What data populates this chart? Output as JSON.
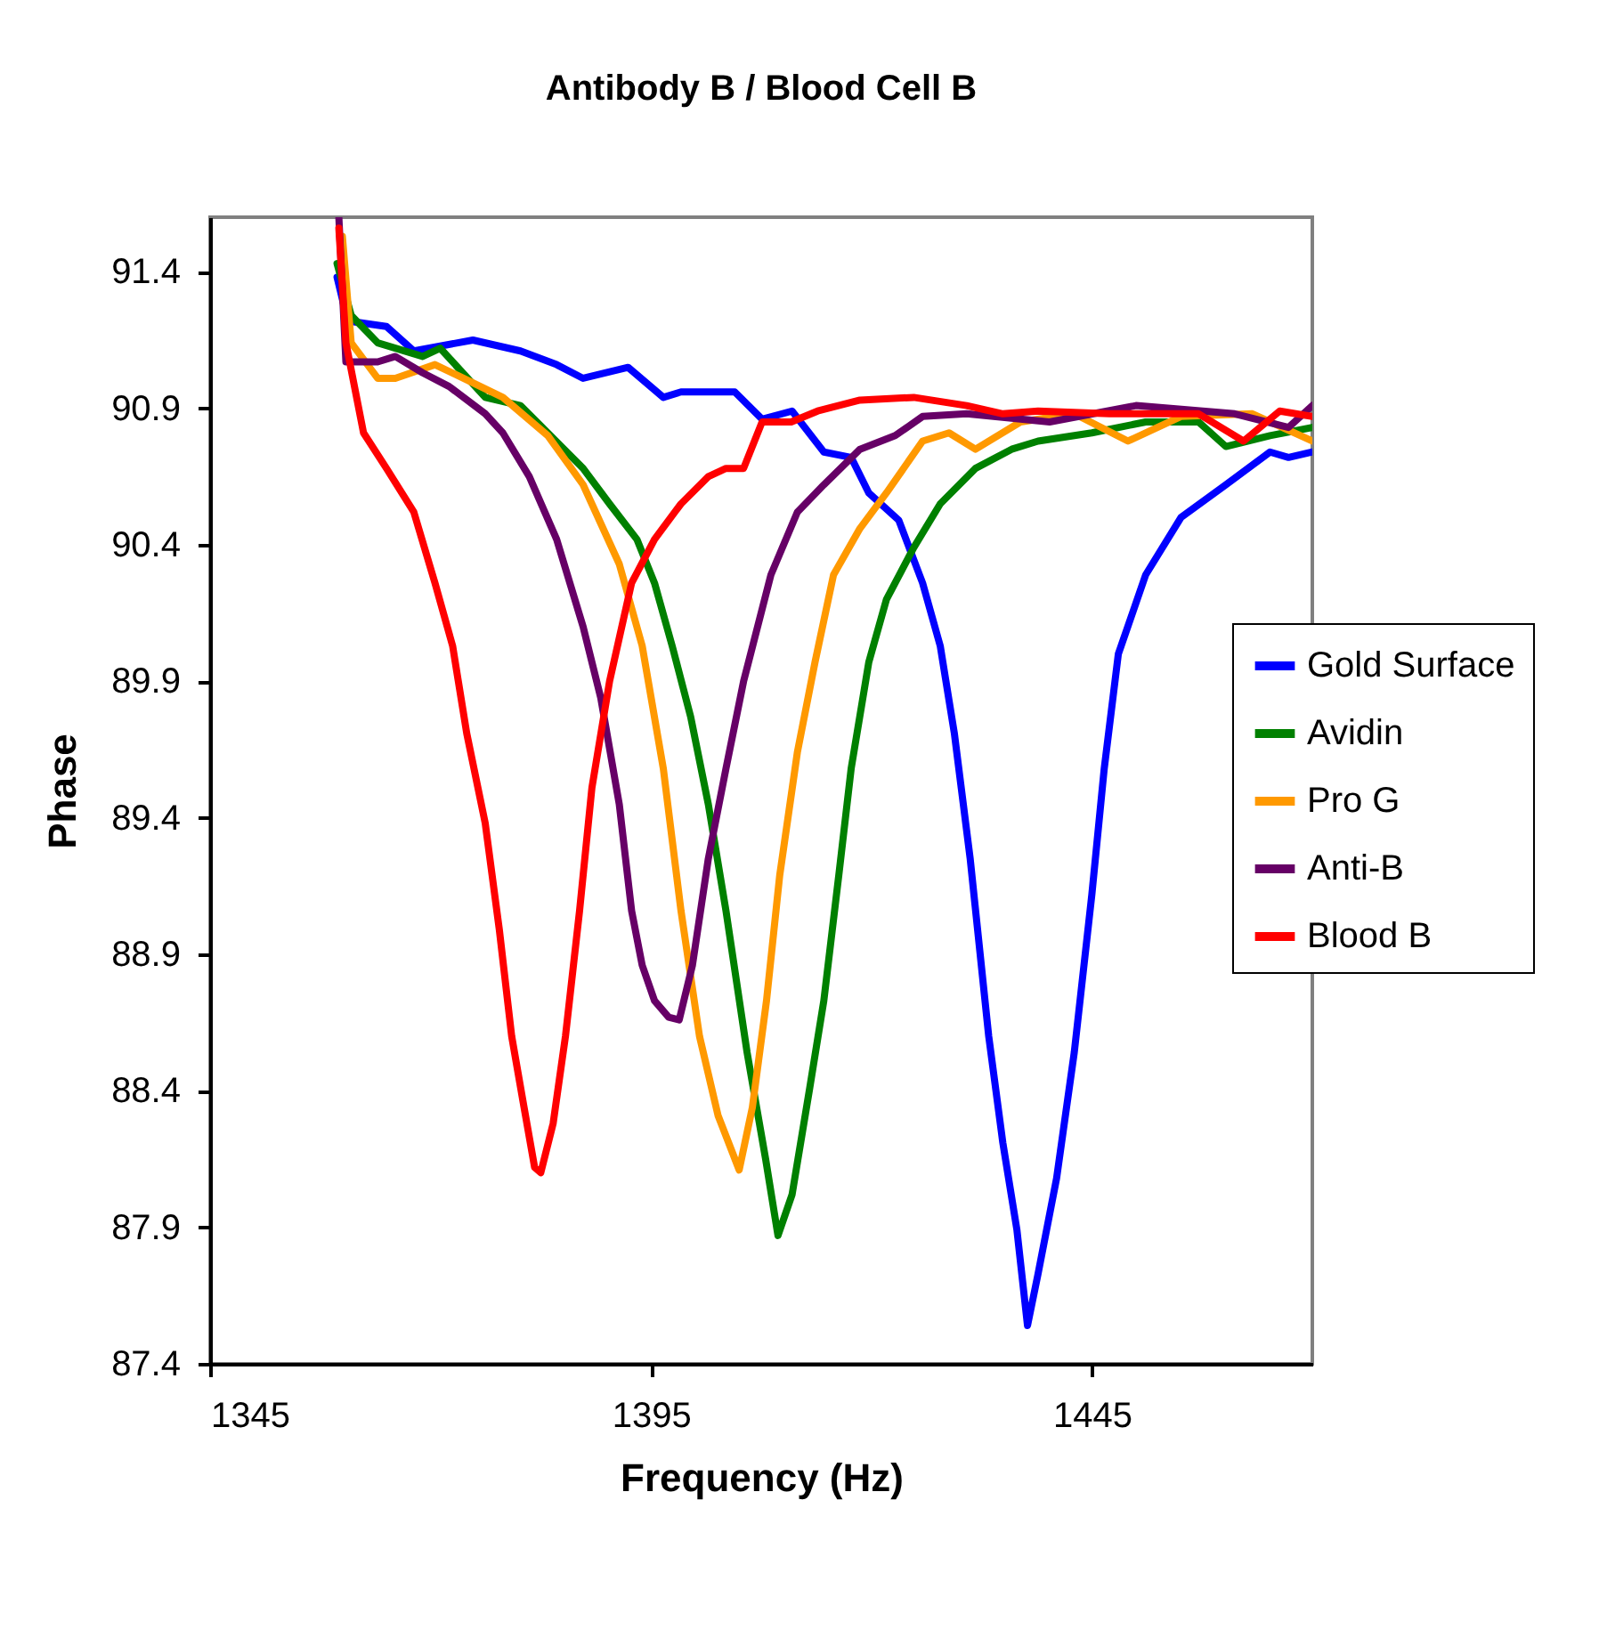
{
  "chart_data": {
    "type": "line",
    "title": "Antibody B / Blood Cell B",
    "xlabel": "Frequency (Hz)",
    "ylabel": "Phase",
    "xlim": [
      1345,
      1470
    ],
    "xticks": [
      1345,
      1395,
      1445
    ],
    "ylim": [
      87.4,
      91.6
    ],
    "yticks": [
      87.4,
      87.9,
      88.4,
      88.9,
      89.4,
      89.9,
      90.4,
      90.9,
      91.4
    ],
    "grid": false,
    "legend": "right",
    "marker": "none",
    "line_style": "solid",
    "series": [
      {
        "name": "Gold Surface",
        "color": "#0000ff",
        "x": [
          1359.4,
          1360.6,
          1365.0,
          1368.1,
          1374.8,
          1380.2,
          1384.3,
          1387.3,
          1392.4,
          1396.4,
          1398.4,
          1404.5,
          1407.6,
          1411.0,
          1414.6,
          1417.7,
          1419.7,
          1423.1,
          1425.8,
          1427.8,
          1429.4,
          1431.2,
          1433.3,
          1434.9,
          1436.5,
          1437.7,
          1438.9,
          1441.0,
          1443.0,
          1445.0,
          1446.4,
          1448.0,
          1451.1,
          1455.1,
          1460.2,
          1465.2,
          1467.3,
          1470
        ],
        "values": [
          91.38,
          91.22,
          91.2,
          91.11,
          91.15,
          91.11,
          91.06,
          91.01,
          91.05,
          90.94,
          90.96,
          90.96,
          90.86,
          90.89,
          90.74,
          90.72,
          90.59,
          90.49,
          90.26,
          90.03,
          89.71,
          89.25,
          88.6,
          88.21,
          87.89,
          87.54,
          87.73,
          88.08,
          88.54,
          89.12,
          89.58,
          90.0,
          90.29,
          90.5,
          90.62,
          90.74,
          90.72,
          90.74
        ]
      },
      {
        "name": "Avidin",
        "color": "#008000",
        "x": [
          1359.4,
          1361.0,
          1364.0,
          1369.1,
          1371.1,
          1376.2,
          1380.2,
          1383.3,
          1387.3,
          1390.3,
          1393.4,
          1395.4,
          1397.4,
          1399.5,
          1401.5,
          1403.5,
          1405.9,
          1408.0,
          1409.4,
          1411.0,
          1413.0,
          1414.6,
          1416.3,
          1417.7,
          1419.7,
          1421.7,
          1424.8,
          1427.8,
          1431.8,
          1435.9,
          1438.9,
          1445.0,
          1451.1,
          1457.1,
          1460.2,
          1465.2,
          1470
        ],
        "values": [
          91.43,
          91.24,
          91.14,
          91.09,
          91.12,
          90.94,
          90.91,
          90.81,
          90.68,
          90.55,
          90.42,
          90.26,
          90.03,
          89.77,
          89.45,
          89.06,
          88.54,
          88.15,
          87.87,
          88.02,
          88.41,
          88.73,
          89.19,
          89.58,
          89.97,
          90.2,
          90.39,
          90.55,
          90.68,
          90.75,
          90.78,
          90.81,
          90.85,
          90.85,
          90.76,
          90.8,
          90.83
        ]
      },
      {
        "name": "Pro G",
        "color": "#ff9900",
        "x": [
          1360.0,
          1361.0,
          1364.0,
          1366.0,
          1370.5,
          1373.1,
          1378.2,
          1383.3,
          1387.3,
          1391.4,
          1394.0,
          1396.4,
          1398.4,
          1400.5,
          1402.6,
          1405.0,
          1406.5,
          1408.1,
          1409.6,
          1411.6,
          1413.6,
          1415.7,
          1418.7,
          1421.7,
          1425.8,
          1428.8,
          1431.8,
          1436.9,
          1443.0,
          1449.1,
          1455.1,
          1463.2,
          1470
        ],
        "values": [
          91.53,
          91.14,
          91.01,
          91.01,
          91.06,
          91.02,
          90.94,
          90.8,
          90.62,
          90.33,
          90.03,
          89.58,
          89.06,
          88.6,
          88.31,
          88.11,
          88.34,
          88.73,
          89.19,
          89.64,
          89.97,
          90.29,
          90.46,
          90.59,
          90.78,
          90.81,
          90.75,
          90.85,
          90.88,
          90.78,
          90.87,
          90.88,
          90.78
        ]
      },
      {
        "name": "Anti-B",
        "color": "#660066",
        "x": [
          1359.6,
          1360.4,
          1364.0,
          1366.0,
          1369.1,
          1372.1,
          1376.2,
          1378.2,
          1381.2,
          1384.3,
          1387.3,
          1389.3,
          1391.4,
          1392.8,
          1394.0,
          1395.4,
          1397.0,
          1398.2,
          1399.7,
          1401.5,
          1403.5,
          1405.5,
          1408.6,
          1411.6,
          1414.6,
          1418.7,
          1422.7,
          1425.8,
          1430.8,
          1440.2,
          1450.0,
          1461.2,
          1467.3,
          1470
        ],
        "values": [
          91.6,
          91.07,
          91.07,
          91.09,
          91.03,
          90.98,
          90.88,
          90.81,
          90.65,
          90.42,
          90.1,
          89.84,
          89.45,
          89.06,
          88.86,
          88.73,
          88.67,
          88.66,
          88.86,
          89.25,
          89.58,
          89.9,
          90.29,
          90.52,
          90.62,
          90.75,
          90.8,
          90.87,
          90.88,
          90.85,
          90.91,
          90.88,
          90.83,
          90.91
        ]
      },
      {
        "name": "Blood B",
        "color": "#ff0000",
        "x": [
          1359.6,
          1360.4,
          1362.4,
          1365.0,
          1368.1,
          1370.5,
          1372.5,
          1374.1,
          1376.2,
          1377.8,
          1379.2,
          1380.6,
          1381.8,
          1382.5,
          1383.9,
          1385.3,
          1386.9,
          1388.3,
          1390.3,
          1392.8,
          1395.4,
          1398.4,
          1401.5,
          1403.5,
          1405.5,
          1407.6,
          1410.9,
          1413.9,
          1418.7,
          1424.8,
          1430.8,
          1434.9,
          1438.9,
          1447.0,
          1457.1,
          1462.2,
          1466.3,
          1470
        ],
        "values": [
          91.56,
          91.14,
          90.81,
          90.68,
          90.52,
          90.26,
          90.03,
          89.71,
          89.38,
          88.99,
          88.6,
          88.34,
          88.12,
          88.1,
          88.28,
          88.6,
          89.06,
          89.51,
          89.9,
          90.26,
          90.42,
          90.55,
          90.65,
          90.68,
          90.68,
          90.85,
          90.85,
          90.89,
          90.93,
          90.94,
          90.91,
          90.88,
          90.89,
          90.88,
          90.88,
          90.78,
          90.89,
          90.87
        ]
      }
    ]
  }
}
